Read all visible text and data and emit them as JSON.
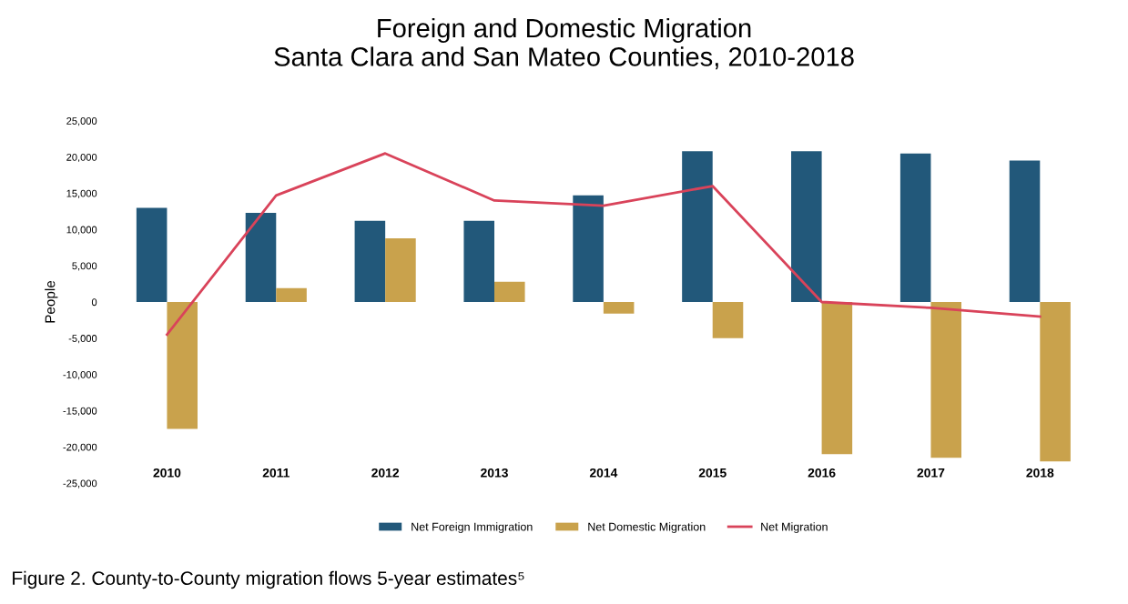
{
  "chart_data": {
    "type": "bar",
    "title": "Foreign and Domestic Migration\nSanta Clara and San Mateo Counties, 2010-2018",
    "ylabel": "People",
    "categories": [
      "2010",
      "2011",
      "2012",
      "2013",
      "2014",
      "2015",
      "2016",
      "2017",
      "2018"
    ],
    "series": [
      {
        "name": "Net Foreign Immigration",
        "color": "#22587a",
        "values": [
          13000,
          12300,
          11200,
          11200,
          14700,
          20800,
          20800,
          20500,
          19500
        ]
      },
      {
        "name": "Net Domestic Migration",
        "color": "#c9a24c",
        "values": [
          -17500,
          1900,
          8800,
          2800,
          -1600,
          -5000,
          -21000,
          -21500,
          -22000
        ]
      },
      {
        "name": "Net Migration",
        "type": "line",
        "color": "#d9435a",
        "values": [
          -4500,
          14700,
          20500,
          14000,
          13300,
          16000,
          0,
          -800,
          -2000
        ]
      }
    ],
    "ylim": [
      -25000,
      25000
    ],
    "yticks": [
      {
        "value": -25000,
        "label": "-25,000"
      },
      {
        "value": -20000,
        "label": "-20,000"
      },
      {
        "value": -15000,
        "label": "-15,000"
      },
      {
        "value": -10000,
        "label": "-10,000"
      },
      {
        "value": -5000,
        "label": "-5,000"
      },
      0,
      {
        "value": 5000,
        "label": "5,000"
      },
      {
        "value": 10000,
        "label": "10,000"
      },
      {
        "value": 15000,
        "label": "15,000"
      },
      {
        "value": 20000,
        "label": "20,000"
      },
      {
        "value": 25000,
        "label": "25,000"
      }
    ],
    "grid": false,
    "legend": "bottom",
    "marker": "none",
    "annotations": [
      "Figure 2. County-to-County migration flows 5-year estimates⁵"
    ]
  }
}
